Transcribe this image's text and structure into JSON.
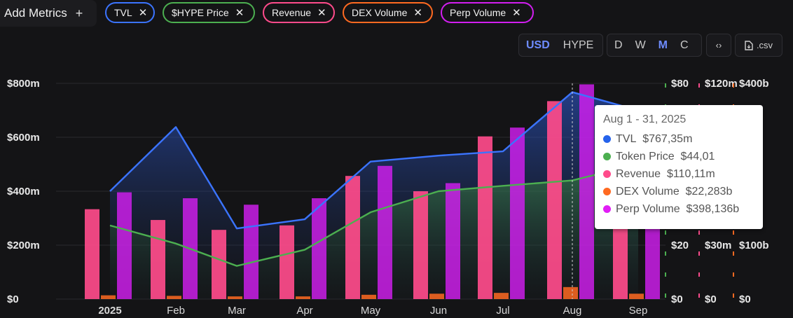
{
  "toolbar": {
    "add_metrics_label": "Add Metrics",
    "add_icon": "plus-icon",
    "pills": [
      {
        "label": "TVL",
        "color": "#3b74ff"
      },
      {
        "label": "$HYPE Price",
        "color": "#4caf50"
      },
      {
        "label": "Revenue",
        "color": "#ff4b8b"
      },
      {
        "label": "DEX Volume",
        "color": "#ff6a21"
      },
      {
        "label": "Perp Volume",
        "color": "#d21ef0"
      }
    ],
    "remove_icon": "close-icon",
    "currency": [
      "USD",
      "HYPE"
    ],
    "currency_active": "USD",
    "granularity": [
      "D",
      "W",
      "M",
      "C"
    ],
    "granularity_active": "M",
    "embed_icon": "code-icon",
    "csv_icon": "file-icon",
    "csv_label": ".csv"
  },
  "chart_data": {
    "type": "bar",
    "categories": [
      "2025",
      "Feb",
      "Mar",
      "Apr",
      "May",
      "Jun",
      "Jul",
      "Aug",
      "Sep"
    ],
    "axes": {
      "left": {
        "label": "TVL",
        "ticks": [
          "$0",
          "$200m",
          "$400m",
          "$600m",
          "$800m"
        ],
        "ylim": [
          0,
          800
        ]
      },
      "price": {
        "label": "Token Price",
        "ticks": [
          "$0",
          "$20",
          "$80"
        ],
        "ylim": [
          0,
          80
        ]
      },
      "revenue": {
        "label": "Revenue",
        "ticks": [
          "$0",
          "$30m",
          "$120m"
        ],
        "ylim": [
          0,
          120
        ]
      },
      "volume": {
        "label": "Volume",
        "ticks": [
          "$0",
          "$100b",
          "$400b"
        ],
        "ylim": [
          0,
          400
        ]
      }
    },
    "grid": true,
    "series": [
      {
        "name": "TVL",
        "type": "area",
        "axis": "left",
        "color": "#3b74ff",
        "values": [
          400,
          638,
          262,
          296,
          510,
          532,
          548,
          767.35,
          700
        ]
      },
      {
        "name": "Token Price",
        "type": "area",
        "axis": "price",
        "color": "#4caf50",
        "values": [
          27.3,
          20.6,
          12.3,
          18.3,
          32.2,
          40.0,
          42.0,
          44.01,
          50.0
        ]
      },
      {
        "name": "Revenue",
        "type": "bar",
        "axis": "revenue",
        "color": "#ff4b8b",
        "values": [
          50,
          44,
          38.5,
          41,
          68.5,
          60,
          90.5,
          110.11,
          52
        ]
      },
      {
        "name": "DEX Volume",
        "type": "bar",
        "axis": "volume",
        "color": "#ff6a21",
        "values": [
          7,
          6,
          5,
          5,
          8,
          10,
          11.5,
          22.283,
          10
        ]
      },
      {
        "name": "Perp Volume",
        "type": "bar",
        "axis": "volume",
        "color": "#d21ef0",
        "values": [
          198,
          187,
          175,
          187,
          247,
          215,
          318,
          398.136,
          305
        ]
      }
    ],
    "tooltip": {
      "title": "Aug 1 - 31, 2025",
      "rows": [
        {
          "label": "TVL",
          "value": "$767,35m",
          "color": "#2563eb"
        },
        {
          "label": "Token Price",
          "value": "$44,01",
          "color": "#4caf50"
        },
        {
          "label": "Revenue",
          "value": "$110,11m",
          "color": "#ff4b8b"
        },
        {
          "label": "DEX Volume",
          "value": "$22,283b",
          "color": "#ff6a21"
        },
        {
          "label": "Perp Volume",
          "value": "$398,136b",
          "color": "#e11ef5"
        }
      ]
    }
  }
}
